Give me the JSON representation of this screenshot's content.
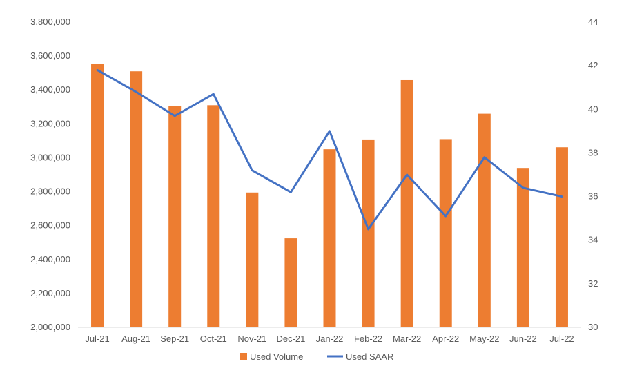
{
  "chart_data": {
    "type": "bar",
    "categories": [
      "Jul-21",
      "Aug-21",
      "Sep-21",
      "Oct-21",
      "Nov-21",
      "Dec-21",
      "Jan-22",
      "Feb-22",
      "Mar-22",
      "Apr-22",
      "May-22",
      "Jun-22",
      "Jul-22"
    ],
    "series": [
      {
        "name": "Used Volume",
        "type": "bar",
        "axis": "left",
        "color": "#ED7D31",
        "values": [
          3555000,
          3510000,
          3305000,
          3310000,
          2795000,
          2525000,
          3050000,
          3108000,
          3458000,
          3110000,
          3260000,
          2940000,
          3062000
        ]
      },
      {
        "name": "Used SAAR",
        "type": "line",
        "axis": "right",
        "color": "#4472C4",
        "values": [
          41.8,
          40.8,
          39.7,
          40.7,
          37.2,
          36.2,
          39.0,
          34.5,
          37.0,
          35.1,
          37.8,
          36.4,
          36.0
        ]
      }
    ],
    "y_left": {
      "min": 2000000,
      "max": 3800000,
      "ticks": [
        "2,000,000",
        "2,200,000",
        "2,400,000",
        "2,600,000",
        "2,800,000",
        "3,000,000",
        "3,200,000",
        "3,400,000",
        "3,600,000",
        "3,800,000"
      ]
    },
    "y_right": {
      "min": 30,
      "max": 44,
      "ticks": [
        "30",
        "32",
        "34",
        "36",
        "38",
        "40",
        "42",
        "44"
      ]
    },
    "grid": false,
    "legend_position": "bottom"
  }
}
